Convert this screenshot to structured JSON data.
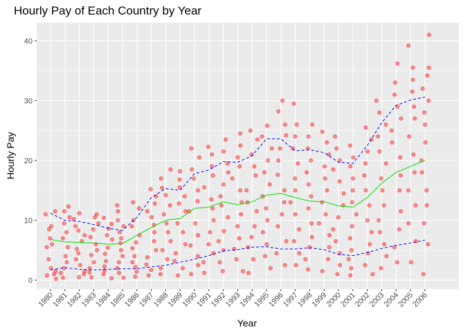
{
  "chart_data": {
    "type": "scatter",
    "title": "Hourly Pay of Each Country by Year",
    "xlabel": "Year",
    "ylabel": "Hourly Pay",
    "x_categories": [
      "1980",
      "1981",
      "1982",
      "1983",
      "1984",
      "1985",
      "1986",
      "1987",
      "1988",
      "1989",
      "1990",
      "1991",
      "1992",
      "1993",
      "1994",
      "1995",
      "1996",
      "1997",
      "1998",
      "1999",
      "2000",
      "2001",
      "2002",
      "2003",
      "2004",
      "2005",
      "2006"
    ],
    "ylim": [
      -1.5,
      43
    ],
    "yticks": [
      0,
      10,
      20,
      30,
      40
    ],
    "grid": true,
    "legend": "none",
    "colors": {
      "points": "#ff0000",
      "upper_trend": "#0000ff",
      "mean_trend": "#00dd00",
      "lower_trend": "#0000ff",
      "panel": "#ebebeb",
      "grid": "#ffffff"
    },
    "series": [
      {
        "style": "points",
        "x": [
          1980,
          1980,
          1980,
          1980,
          1980,
          1980,
          1980,
          1980,
          1980,
          1980,
          1980,
          1980,
          1980,
          1981,
          1981,
          1981,
          1981,
          1981,
          1981,
          1981,
          1981,
          1981,
          1981,
          1981,
          1981,
          1982,
          1982,
          1982,
          1982,
          1982,
          1982,
          1982,
          1982,
          1982,
          1982,
          1982,
          1982,
          1982,
          1983,
          1983,
          1983,
          1983,
          1983,
          1983,
          1983,
          1983,
          1983,
          1983,
          1983,
          1983,
          1984,
          1984,
          1984,
          1984,
          1984,
          1984,
          1984,
          1984,
          1984,
          1984,
          1984,
          1984,
          1985,
          1985,
          1985,
          1985,
          1985,
          1985,
          1985,
          1985,
          1985,
          1985,
          1985,
          1985,
          1985,
          1986,
          1986,
          1986,
          1986,
          1986,
          1986,
          1986,
          1986,
          1986,
          1986,
          1986,
          1986,
          1987,
          1987,
          1987,
          1987,
          1987,
          1987,
          1987,
          1987,
          1987,
          1987,
          1987,
          1987,
          1987,
          1988,
          1988,
          1988,
          1988,
          1988,
          1988,
          1988,
          1988,
          1988,
          1988,
          1988,
          1988,
          1988,
          1989,
          1989,
          1989,
          1989,
          1989,
          1989,
          1989,
          1989,
          1989,
          1989,
          1989,
          1989,
          1989,
          1990,
          1990,
          1990,
          1990,
          1990,
          1990,
          1990,
          1990,
          1990,
          1990,
          1990,
          1990,
          1990,
          1991,
          1991,
          1991,
          1991,
          1991,
          1991,
          1991,
          1991,
          1991,
          1991,
          1991,
          1991,
          1991,
          1992,
          1992,
          1992,
          1992,
          1992,
          1992,
          1992,
          1992,
          1992,
          1992,
          1992,
          1992,
          1992,
          1993,
          1993,
          1993,
          1993,
          1993,
          1993,
          1993,
          1993,
          1993,
          1993,
          1993,
          1993,
          1993,
          1994,
          1994,
          1994,
          1994,
          1994,
          1994,
          1994,
          1994,
          1994,
          1994,
          1994,
          1994,
          1994,
          1995,
          1995,
          1995,
          1995,
          1995,
          1995,
          1995,
          1995,
          1995,
          1995,
          1995,
          1995,
          1995,
          1996,
          1996,
          1996,
          1996,
          1996,
          1996,
          1996,
          1996,
          1996,
          1996,
          1996,
          1996,
          1996,
          1996,
          1997,
          1997,
          1997,
          1997,
          1997,
          1997,
          1997,
          1997,
          1997,
          1997,
          1997,
          1997,
          1997,
          1998,
          1998,
          1998,
          1998,
          1998,
          1998,
          1998,
          1998,
          1998,
          1998,
          1998,
          1998,
          1998,
          1999,
          1999,
          1999,
          1999,
          1999,
          1999,
          1999,
          1999,
          1999,
          1999,
          1999,
          1999,
          1999,
          2000,
          2000,
          2000,
          2000,
          2000,
          2000,
          2000,
          2000,
          2000,
          2000,
          2000,
          2000,
          2000,
          2001,
          2001,
          2001,
          2001,
          2001,
          2001,
          2001,
          2001,
          2001,
          2001,
          2001,
          2001,
          2001,
          2002,
          2002,
          2002,
          2002,
          2002,
          2002,
          2002,
          2002,
          2002,
          2002,
          2002,
          2002,
          2002,
          2003,
          2003,
          2003,
          2003,
          2003,
          2003,
          2003,
          2003,
          2003,
          2003,
          2003,
          2003,
          2003,
          2003,
          2004,
          2004,
          2004,
          2004,
          2004,
          2004,
          2004,
          2004,
          2004,
          2004,
          2004,
          2004,
          2004,
          2004,
          2005,
          2005,
          2005,
          2005,
          2005,
          2005,
          2005,
          2005,
          2005,
          2005,
          2005,
          2005,
          2005,
          2005,
          2006,
          2006,
          2006,
          2006,
          2006,
          2006,
          2006,
          2006,
          2006,
          2006,
          2006,
          2006,
          2006,
          2006,
          2006
        ],
        "y": [
          11.5,
          11,
          9,
          8.5,
          7,
          6,
          5.5,
          3.5,
          2,
          1.5,
          1,
          0.8,
          0.2,
          12.3,
          11.5,
          10.5,
          9.5,
          8,
          7,
          5.5,
          4,
          3,
          2,
          1.2,
          0.4,
          11.2,
          10.2,
          9,
          8.3,
          7.5,
          6.5,
          5.2,
          4.5,
          3.5,
          2.5,
          1.5,
          1,
          0.5,
          11,
          10.5,
          9.5,
          8.5,
          7.2,
          6,
          5,
          4.2,
          3,
          2,
          1.3,
          0.5,
          10.4,
          9.4,
          8.6,
          7.5,
          6.8,
          5.4,
          4.4,
          3.2,
          2.3,
          1.6,
          1,
          0.3,
          12.5,
          11.5,
          10,
          9,
          8,
          7,
          6.2,
          5,
          4,
          3,
          2,
          1.2,
          0.4,
          13,
          12,
          10,
          9,
          7.5,
          6.3,
          5.3,
          4,
          3,
          2.2,
          1.4,
          0.6,
          15.2,
          14,
          12.8,
          11.5,
          10.5,
          9.2,
          8,
          6.5,
          5,
          3.8,
          2.6,
          1.7,
          0.8,
          18.5,
          17,
          15.4,
          14.2,
          12.5,
          11,
          9.5,
          8,
          6.5,
          5,
          3.5,
          2,
          1,
          18.2,
          16.8,
          15.5,
          14,
          12.8,
          11.5,
          9.5,
          8,
          6,
          4.5,
          3.2,
          2,
          0.8,
          22,
          20.5,
          18.5,
          17,
          15,
          13.2,
          11.5,
          9.5,
          7.5,
          5.8,
          4,
          2.5,
          1,
          22.3,
          21,
          19,
          17.5,
          15.5,
          13.5,
          12,
          10,
          8,
          6,
          4.5,
          3,
          1.2,
          23.5,
          21.5,
          19.5,
          18,
          16,
          14,
          12.5,
          10.5,
          8.2,
          6.5,
          5,
          3,
          1.5,
          24.5,
          22.5,
          20.5,
          19,
          17,
          15,
          13,
          11,
          9,
          7,
          5.2,
          3.5,
          1.5,
          25,
          23.5,
          21,
          19,
          17.5,
          15,
          13,
          11.5,
          9,
          7.2,
          5.5,
          3.5,
          1.2,
          25.8,
          24,
          22,
          20,
          18,
          16,
          14,
          12,
          10,
          8,
          6,
          4,
          2,
          30,
          28.2,
          26,
          24.2,
          22,
          20,
          17.6,
          15,
          13,
          11,
          9,
          6.5,
          4.5,
          2.5,
          29.5,
          26,
          24,
          22,
          19.5,
          17,
          15,
          13,
          11,
          8.5,
          6.5,
          4.5,
          2.5,
          26,
          24,
          22,
          20,
          18,
          16,
          14,
          12,
          9.5,
          7.2,
          5.5,
          3.5,
          1.8,
          24.8,
          23,
          21,
          19,
          17,
          15,
          13,
          11,
          9.5,
          7.5,
          5.5,
          3.5,
          1.5,
          24,
          22,
          20,
          18.5,
          16.5,
          14.5,
          12.5,
          10.5,
          8.5,
          6.5,
          4.5,
          2.5,
          1,
          22.5,
          20.5,
          19,
          17,
          15,
          13,
          11,
          9,
          7,
          5,
          3.5,
          2,
          0.8,
          25.5,
          23.5,
          21.5,
          19.5,
          17.5,
          15,
          12.5,
          10,
          8,
          6,
          4.5,
          2.5,
          1,
          30,
          28,
          26,
          24,
          21.5,
          19.5,
          17,
          15,
          12.5,
          10,
          8,
          6,
          4,
          2,
          36.2,
          33,
          31,
          29,
          27,
          25,
          23,
          20.5,
          17.5,
          15,
          11.5,
          8.5,
          5.5,
          3,
          39.2,
          35.5,
          33.5,
          31.5,
          29,
          27,
          24,
          21,
          18,
          15,
          12.5,
          9.5,
          6.5,
          3,
          41,
          35.5,
          34.2,
          32,
          30,
          28,
          26,
          23,
          20,
          18,
          15,
          12.5,
          9.5,
          6,
          1
        ]
      },
      {
        "style": "dashed",
        "x": [
          1980,
          1981,
          1982,
          1983,
          1984,
          1985,
          1986,
          1987,
          1988,
          1989,
          1990,
          1991,
          1992,
          1993,
          1994,
          1995,
          1996,
          1997,
          1998,
          1999,
          2000,
          2001,
          2002,
          2003,
          2004,
          2005,
          2006
        ],
        "y": [
          11.2,
          10,
          9.8,
          9.3,
          8.7,
          8.3,
          10.5,
          13.8,
          15.3,
          15,
          17.8,
          18.4,
          19.8,
          19.7,
          20.8,
          23.6,
          23.6,
          21.6,
          21.8,
          21.3,
          19.7,
          19.5,
          22.5,
          26.3,
          29.2,
          30.1,
          30.6
        ]
      },
      {
        "style": "solid",
        "x": [
          1980,
          1981,
          1982,
          1983,
          1984,
          1985,
          1986,
          1987,
          1988,
          1989,
          1990,
          1991,
          1992,
          1993,
          1994,
          1995,
          1996,
          1997,
          1998,
          1999,
          2000,
          2001,
          2002,
          2003,
          2004,
          2005,
          2006
        ],
        "y": [
          6.8,
          6.4,
          6.3,
          6.2,
          6,
          6.1,
          7.5,
          8.8,
          10,
          10.3,
          12,
          12.2,
          13.1,
          12.6,
          13.1,
          14.2,
          14.5,
          13.8,
          13.2,
          13.1,
          12.4,
          12.2,
          13.8,
          16.2,
          18,
          19,
          20
        ]
      },
      {
        "style": "dashed",
        "x": [
          1980,
          1981,
          1982,
          1983,
          1984,
          1985,
          1986,
          1987,
          1988,
          1989,
          1990,
          1991,
          1992,
          1993,
          1994,
          1995,
          1996,
          1997,
          1998,
          1999,
          2000,
          2001,
          2002,
          2003,
          2004,
          2005,
          2006
        ],
        "y": [
          1.7,
          2.1,
          1.8,
          1.7,
          1.8,
          1.9,
          1.9,
          2.2,
          2.5,
          3,
          3.5,
          4.1,
          4.9,
          5.1,
          5.5,
          5.6,
          5.2,
          5.2,
          5.4,
          5.1,
          4.3,
          4.1,
          4.6,
          5.3,
          5.8,
          6.2,
          6.7
        ]
      }
    ]
  }
}
